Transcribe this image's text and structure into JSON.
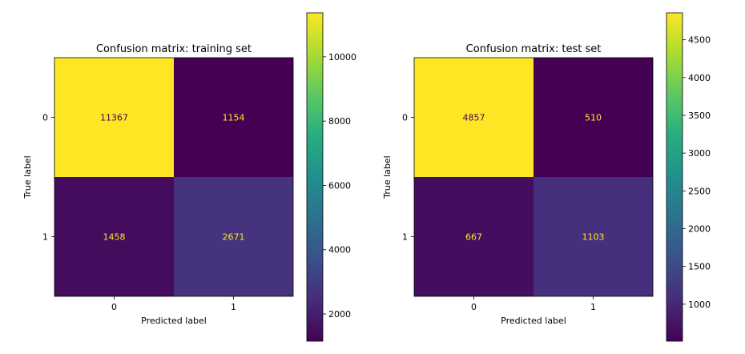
{
  "chart_data": [
    {
      "type": "heatmap",
      "title": "Confusion matrix: training set",
      "xlabel": "Predicted label",
      "ylabel": "True label",
      "x_categories": [
        "0",
        "1"
      ],
      "y_categories": [
        "0",
        "1"
      ],
      "matrix": [
        [
          11367,
          1154
        ],
        [
          1458,
          2671
        ]
      ],
      "colorbar": {
        "min": 1154,
        "max": 11367,
        "ticks": [
          2000,
          4000,
          6000,
          8000,
          10000
        ],
        "colormap": "viridis"
      },
      "text_colors": {
        "on_bright": "#440154",
        "on_dark": "#fde725"
      }
    },
    {
      "type": "heatmap",
      "title": "Confusion matrix: test set",
      "xlabel": "Predicted label",
      "ylabel": "True label",
      "x_categories": [
        "0",
        "1"
      ],
      "y_categories": [
        "0",
        "1"
      ],
      "matrix": [
        [
          4857,
          510
        ],
        [
          667,
          1103
        ]
      ],
      "colorbar": {
        "min": 510,
        "max": 4857,
        "ticks": [
          1000,
          1500,
          2000,
          2500,
          3000,
          3500,
          4000,
          4500
        ],
        "colormap": "viridis"
      },
      "text_colors": {
        "on_bright": "#440154",
        "on_dark": "#fde725"
      }
    }
  ]
}
